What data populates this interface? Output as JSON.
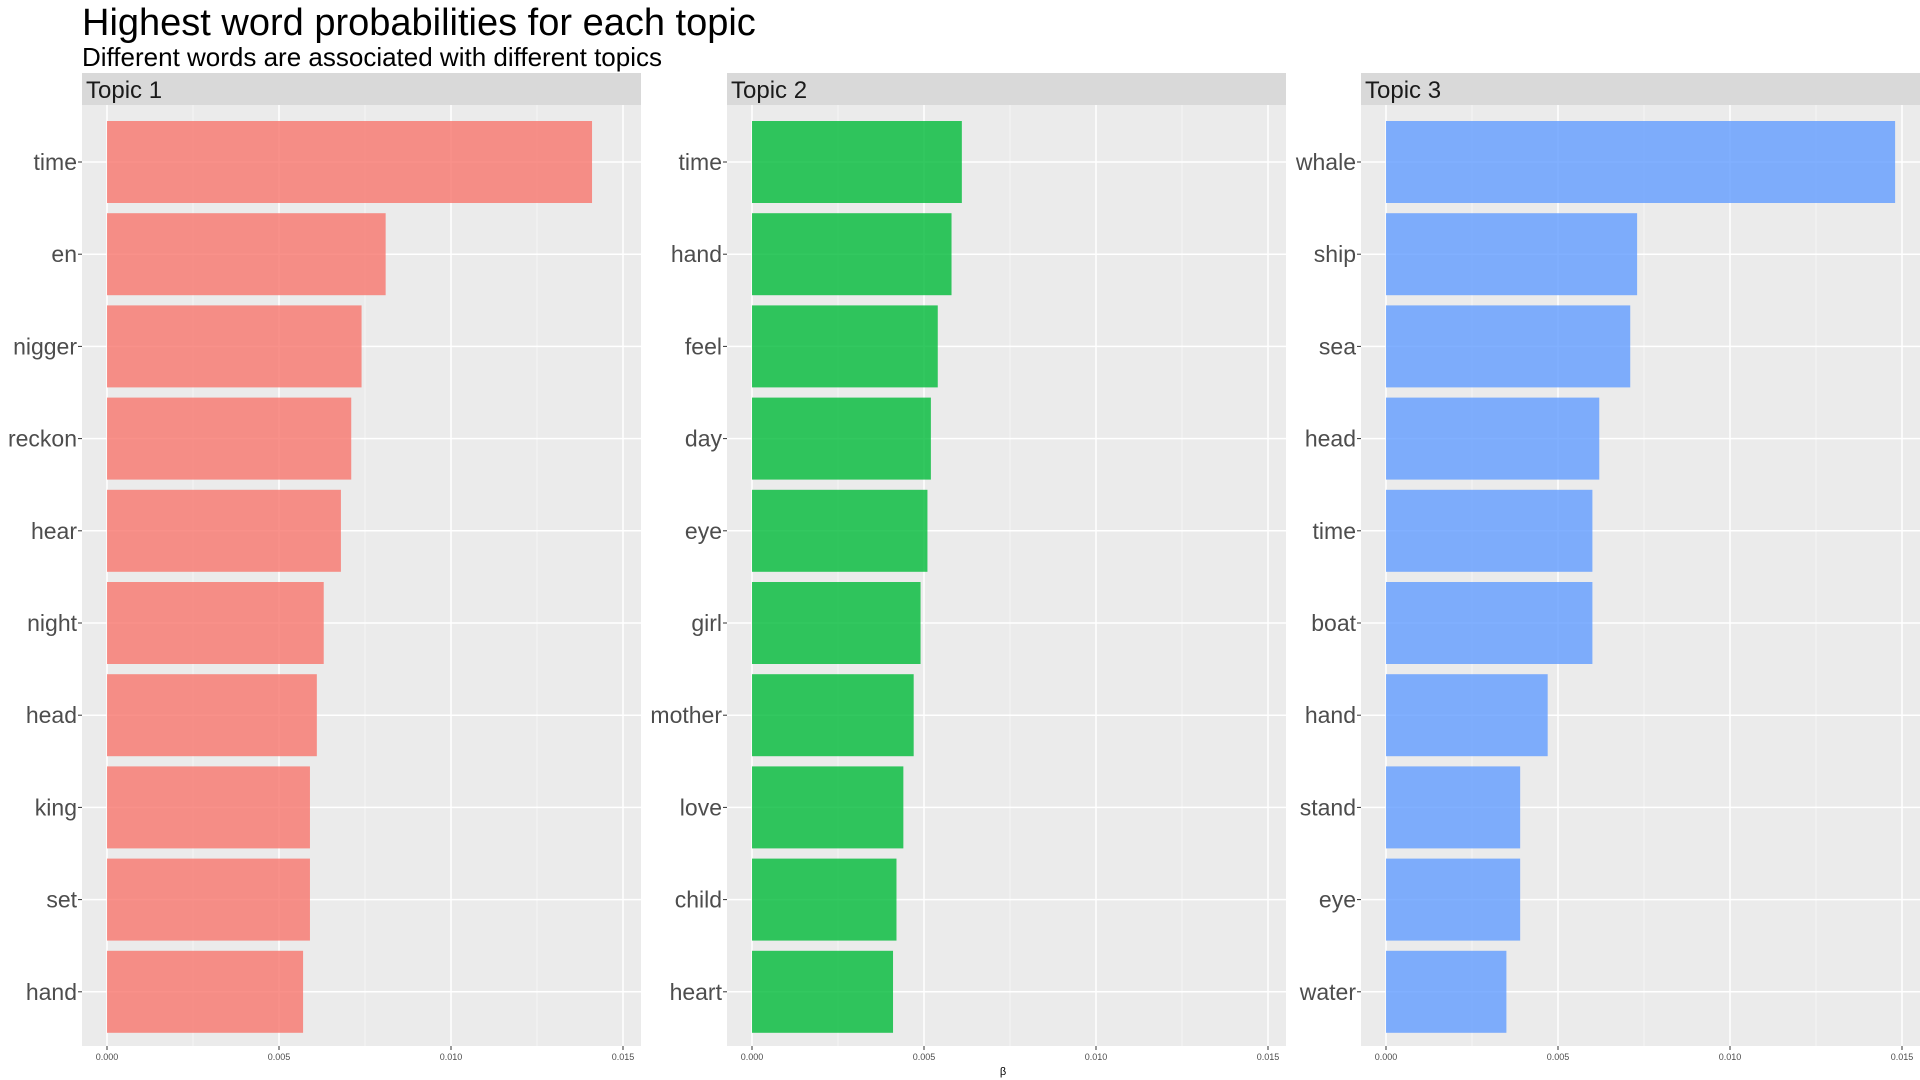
{
  "chart_data": {
    "type": "bar",
    "orientation": "horizontal",
    "title": "Highest word probabilities for each topic",
    "subtitle": "Different words are associated with different topics",
    "xlabel": "β",
    "ylabel": "",
    "xlim": [
      0,
      0.015
    ],
    "x_ticks": [
      "0.000",
      "0.005",
      "0.010",
      "0.015"
    ],
    "grid": true,
    "legend": "none",
    "panels": [
      {
        "strip": "Topic 1",
        "color": "#F8766D",
        "categories": [
          "time",
          "en",
          "nigger",
          "reckon",
          "hear",
          "night",
          "head",
          "king",
          "set",
          "hand"
        ],
        "values": [
          0.0141,
          0.0081,
          0.0074,
          0.0071,
          0.0068,
          0.0063,
          0.0061,
          0.0059,
          0.0059,
          0.0057
        ]
      },
      {
        "strip": "Topic 2",
        "color": "#00BA38",
        "categories": [
          "time",
          "hand",
          "feel",
          "day",
          "eye",
          "girl",
          "mother",
          "love",
          "child",
          "heart"
        ],
        "values": [
          0.0061,
          0.0058,
          0.0054,
          0.0052,
          0.0051,
          0.0049,
          0.0047,
          0.0044,
          0.0042,
          0.0041
        ]
      },
      {
        "strip": "Topic 3",
        "color": "#619CFF",
        "categories": [
          "whale",
          "ship",
          "sea",
          "head",
          "time",
          "boat",
          "hand",
          "stand",
          "eye",
          "water"
        ],
        "values": [
          0.0148,
          0.0073,
          0.0071,
          0.0062,
          0.006,
          0.006,
          0.0047,
          0.0039,
          0.0039,
          0.0035
        ]
      }
    ]
  }
}
